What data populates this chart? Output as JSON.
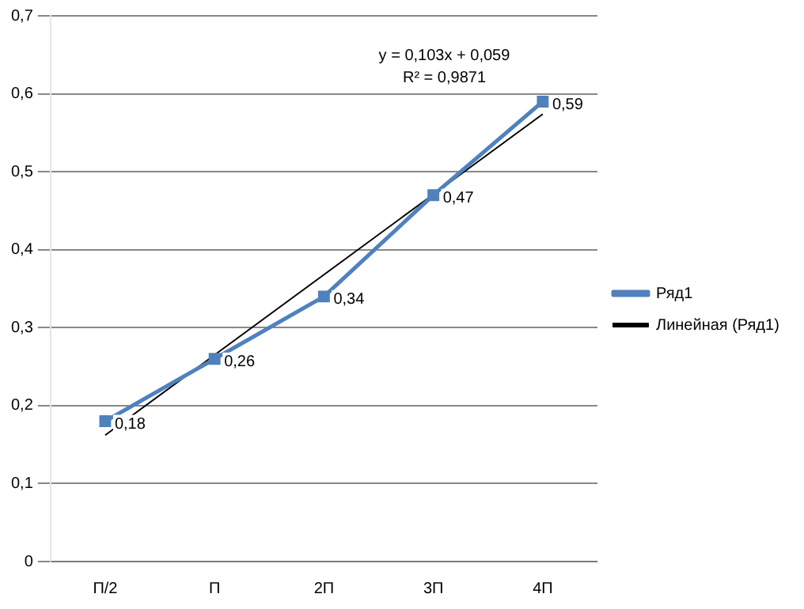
{
  "chart_data": {
    "type": "line",
    "categories": [
      "П/2",
      "П",
      "2П",
      "3П",
      "4П"
    ],
    "series": [
      {
        "name": "Ряд1",
        "color": "#4f81bd",
        "values": [
          0.18,
          0.26,
          0.34,
          0.47,
          0.59
        ],
        "value_labels": [
          "0,18",
          "0,26",
          "0,34",
          "0,47",
          "0,59"
        ],
        "marker": "square"
      },
      {
        "name": "Линейная (Ряд1)",
        "color": "#000000",
        "values": [
          0.162,
          0.265,
          0.368,
          0.471,
          0.574
        ],
        "marker": "none"
      }
    ],
    "ylim": [
      0,
      0.7
    ],
    "yticks": [
      {
        "value": 0,
        "label": "0"
      },
      {
        "value": 0.1,
        "label": "0,1"
      },
      {
        "value": 0.2,
        "label": "0,2"
      },
      {
        "value": 0.3,
        "label": "0,3"
      },
      {
        "value": 0.4,
        "label": "0,4"
      },
      {
        "value": 0.5,
        "label": "0,5"
      },
      {
        "value": 0.6,
        "label": "0,6"
      },
      {
        "value": 0.7,
        "label": "0,7"
      }
    ],
    "grid": "y",
    "legend": "right",
    "annotations": [
      "y = 0,103x + 0,059",
      "R² = 0,9871"
    ]
  }
}
